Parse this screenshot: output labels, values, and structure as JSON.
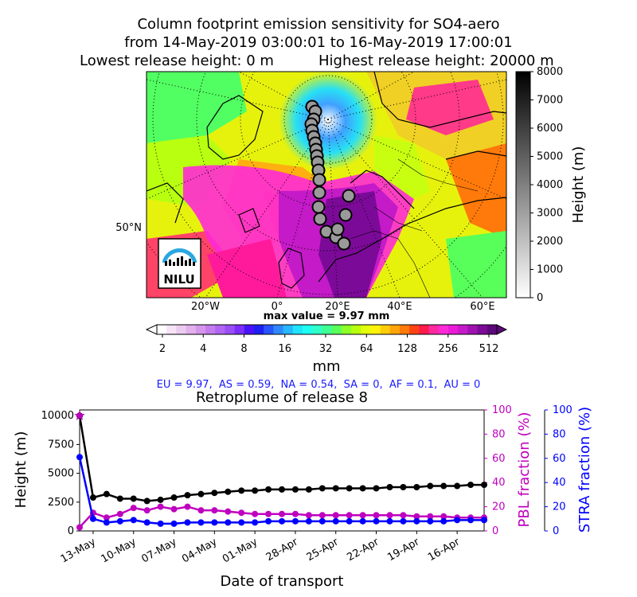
{
  "title": {
    "line1": "Column footprint emission sensitivity for SO4-aero",
    "line2": "from 14-May-2019 03:00:01 to 16-May-2019 17:00:01",
    "lowest": "Lowest release height: 0 m",
    "highest": "Highest release height: 20000 m"
  },
  "map": {
    "lat_label": "50°N",
    "lon_labels": [
      "20°W",
      "0°",
      "20°E",
      "40°E",
      "60°E"
    ],
    "logo_text": "NILU",
    "height_colorbar": {
      "label": "Height (m)",
      "ticks": [
        0,
        1000,
        2000,
        3000,
        4000,
        5000,
        6000,
        7000,
        8000
      ]
    },
    "max_value_label": "max value = 9.97 mm",
    "emission_colorbar": {
      "label": "mm",
      "ticks": [
        "2",
        "4",
        "8",
        "16",
        "32",
        "64",
        "128",
        "256",
        "512"
      ],
      "colors": [
        "#ffffff",
        "#f6e3f6",
        "#eccbf0",
        "#e2b1ec",
        "#d596ea",
        "#c47cee",
        "#b066f2",
        "#9a4ef6",
        "#7a2ef8",
        "#4a12f8",
        "#1f1ff2",
        "#2855ff",
        "#2f88ff",
        "#27b7ff",
        "#1fe3ff",
        "#1ffff0",
        "#2fffc8",
        "#3fff94",
        "#58ff5a",
        "#8cff28",
        "#b8ff10",
        "#e2ff0c",
        "#fff20c",
        "#ffcc0a",
        "#ffa40a",
        "#ff7a0a",
        "#ff4414",
        "#ff1a4c",
        "#ff2aa0",
        "#ff2ad6",
        "#ea1ad8",
        "#c41ac8",
        "#a012b0",
        "#7c0a98",
        "#5c087a"
      ]
    }
  },
  "regions_line": "EU = 9.97,  AS = 0.59,  NA = 0.54,  SA = 0,  AF = 0.1,  AU = 0",
  "chart_data": {
    "type": "line",
    "title": "Retroplume of release 8",
    "xlabel": "Date of transport",
    "ylabel": "Height (m)",
    "y2label": "PBL fraction (%)",
    "y3label": "STRA fraction (%)",
    "ylim": [
      0,
      10500
    ],
    "y2lim": [
      0,
      100
    ],
    "y3lim": [
      0,
      100
    ],
    "yticks": [
      0,
      2500,
      5000,
      7500,
      10000
    ],
    "y2ticks": [
      0,
      20,
      40,
      60,
      80,
      100
    ],
    "y3ticks": [
      0,
      20,
      40,
      60,
      80,
      100
    ],
    "xtick_labels": [
      "13-May",
      "10-May",
      "07-May",
      "04-May",
      "01-May",
      "28-Apr",
      "25-Apr",
      "22-Apr",
      "19-Apr",
      "16-Apr"
    ],
    "xlim": [
      0,
      30
    ],
    "xtick_positions": [
      1,
      4,
      7,
      10,
      13,
      16,
      19,
      22,
      25,
      28
    ],
    "grid": false,
    "series": [
      {
        "axis": "left",
        "color": "#000000",
        "marker": "circle",
        "x": [
          0,
          1,
          2,
          3,
          4,
          5,
          6,
          7,
          8,
          9,
          10,
          11,
          12,
          13,
          14,
          15,
          16,
          17,
          18,
          19,
          20,
          21,
          22,
          23,
          24,
          25,
          26,
          27,
          28,
          29,
          30
        ],
        "values": [
          10000,
          2900,
          3200,
          2800,
          2800,
          2600,
          2700,
          2900,
          3100,
          3200,
          3300,
          3400,
          3500,
          3500,
          3600,
          3600,
          3600,
          3600,
          3700,
          3700,
          3700,
          3700,
          3700,
          3800,
          3800,
          3800,
          3900,
          3900,
          3900,
          4000,
          4000
        ]
      },
      {
        "axis": "right1",
        "color": "#bf00bf",
        "marker": "circle",
        "x": [
          0,
          1,
          2,
          3,
          4,
          5,
          6,
          7,
          8,
          9,
          10,
          11,
          12,
          13,
          14,
          15,
          16,
          17,
          18,
          19,
          20,
          21,
          22,
          23,
          24,
          25,
          26,
          27,
          28,
          29,
          30
        ],
        "values": [
          3,
          15,
          11,
          14,
          19,
          17,
          20,
          18,
          20,
          17,
          17,
          16,
          15,
          14,
          14,
          14,
          14,
          13,
          13,
          13,
          13,
          13,
          13,
          13,
          13,
          12,
          12,
          12,
          11,
          11,
          11
        ]
      },
      {
        "axis": "right2",
        "color": "#0000ff",
        "marker": "circle",
        "x": [
          0,
          1,
          2,
          3,
          4,
          5,
          6,
          7,
          8,
          9,
          10,
          11,
          12,
          13,
          14,
          15,
          16,
          17,
          18,
          19,
          20,
          21,
          22,
          23,
          24,
          25,
          26,
          27,
          28,
          29,
          30
        ],
        "values": [
          61,
          10,
          7,
          8,
          9,
          7,
          6,
          6,
          7,
          7,
          7,
          7,
          7,
          7,
          8,
          8,
          8,
          8,
          8,
          8,
          8,
          8,
          8,
          8,
          8,
          8,
          8,
          8,
          9,
          9,
          9
        ]
      }
    ],
    "start_marker": {
      "symbol": "star",
      "color": "#bf00bf",
      "x": 0,
      "y": 10000
    }
  }
}
